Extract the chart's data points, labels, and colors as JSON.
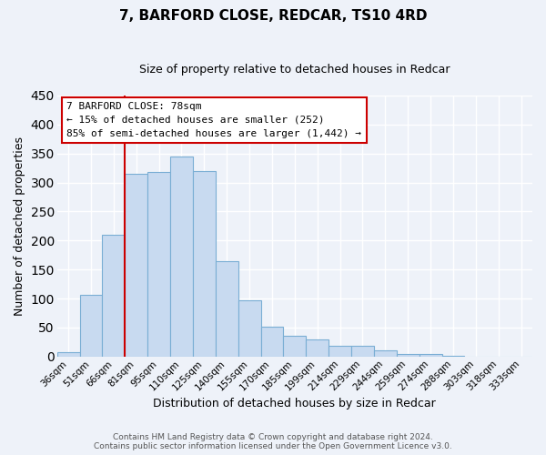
{
  "title": "7, BARFORD CLOSE, REDCAR, TS10 4RD",
  "subtitle": "Size of property relative to detached houses in Redcar",
  "xlabel": "Distribution of detached houses by size in Redcar",
  "ylabel": "Number of detached properties",
  "bar_labels": [
    "36sqm",
    "51sqm",
    "66sqm",
    "81sqm",
    "95sqm",
    "110sqm",
    "125sqm",
    "140sqm",
    "155sqm",
    "170sqm",
    "185sqm",
    "199sqm",
    "214sqm",
    "229sqm",
    "244sqm",
    "259sqm",
    "274sqm",
    "288sqm",
    "303sqm",
    "318sqm",
    "333sqm"
  ],
  "bar_heights": [
    7,
    106,
    210,
    315,
    318,
    345,
    320,
    165,
    97,
    51,
    36,
    29,
    19,
    18,
    10,
    5,
    4,
    1,
    0,
    0,
    0
  ],
  "bar_color": "#c8daf0",
  "bar_edge_color": "#7aaed4",
  "vline_x": 2.5,
  "vline_color": "#cc0000",
  "ylim": [
    0,
    450
  ],
  "yticks": [
    0,
    50,
    100,
    150,
    200,
    250,
    300,
    350,
    400,
    450
  ],
  "annotation_title": "7 BARFORD CLOSE: 78sqm",
  "annotation_line1": "← 15% of detached houses are smaller (252)",
  "annotation_line2": "85% of semi-detached houses are larger (1,442) →",
  "annotation_box_facecolor": "#ffffff",
  "annotation_box_edgecolor": "#cc0000",
  "footer_line1": "Contains HM Land Registry data © Crown copyright and database right 2024.",
  "footer_line2": "Contains public sector information licensed under the Open Government Licence v3.0.",
  "background_color": "#eef2f9",
  "grid_color": "#ffffff",
  "title_fontsize": 11,
  "subtitle_fontsize": 9,
  "axis_label_fontsize": 9,
  "tick_fontsize": 7.5,
  "annotation_fontsize": 8,
  "footer_fontsize": 6.5
}
